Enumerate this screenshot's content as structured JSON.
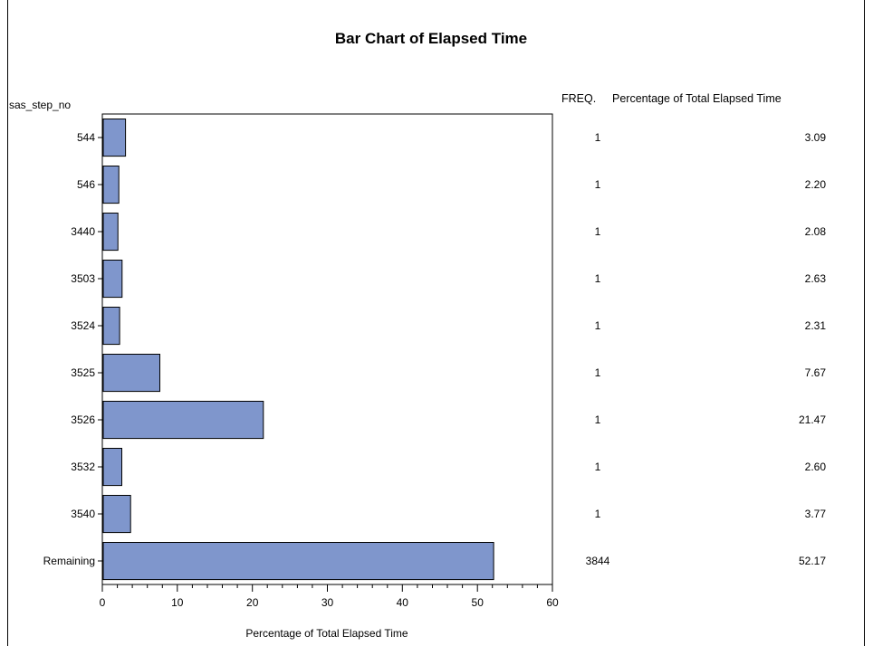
{
  "chart_data": {
    "type": "bar",
    "orientation": "horizontal",
    "title": "Bar Chart of Elapsed Time",
    "xlabel": "Percentage of Total Elapsed Time",
    "ylabel": "sas_step_no",
    "xlim": [
      0,
      60
    ],
    "xticks": [
      "0",
      "10",
      "20",
      "30",
      "40",
      "50",
      "60"
    ],
    "grid": false,
    "bar_color": "#7f96cc",
    "table_header_freq": "FREQ.",
    "table_header_pct": "Percentage of Total Elapsed Time",
    "categories": [
      "544",
      "546",
      "3440",
      "3503",
      "3524",
      "3525",
      "3526",
      "3532",
      "3540",
      "Remaining"
    ],
    "values": [
      3.09,
      2.2,
      2.08,
      2.63,
      2.31,
      7.67,
      21.47,
      2.6,
      3.77,
      52.17
    ],
    "value_labels": [
      "3.09",
      "2.20",
      "2.08",
      "2.63",
      "2.31",
      "7.67",
      "21.47",
      "2.60",
      "3.77",
      "52.17"
    ],
    "freq": [
      "1",
      "1",
      "1",
      "1",
      "1",
      "1",
      "1",
      "1",
      "1",
      "3844"
    ]
  }
}
